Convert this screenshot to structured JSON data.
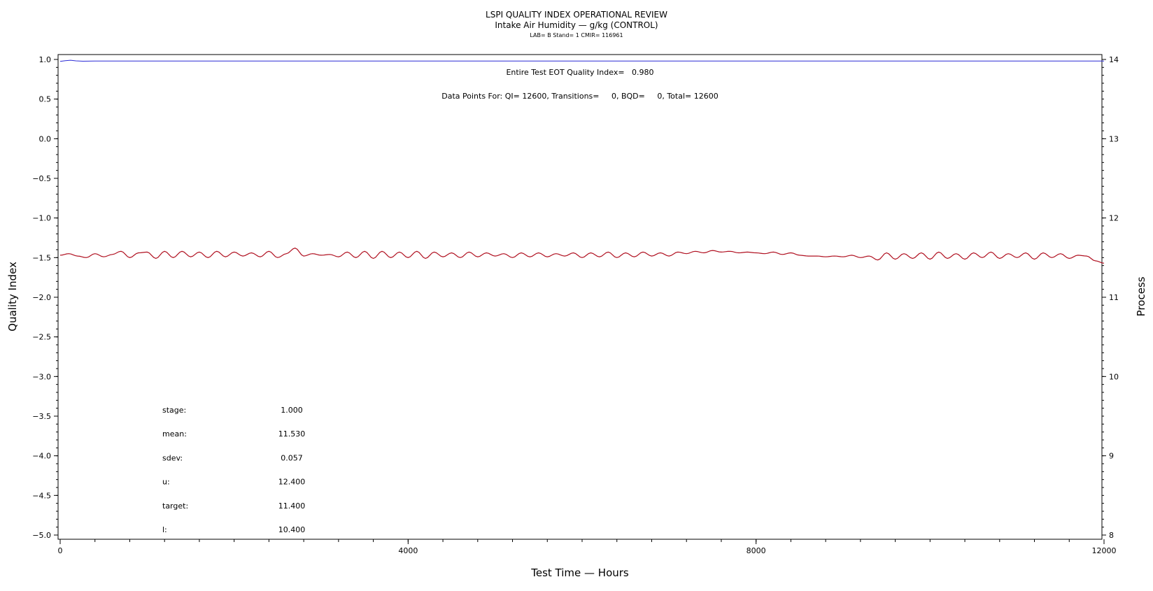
{
  "chart_data": {
    "type": "line",
    "title": "LSPI QUALITY INDEX OPERATIONAL REVIEW",
    "subtitle": "Intake Air Humidity — g/kg (CONTROL)",
    "subtitle2": "LAB= B Stand= 1 CMIR= 116961",
    "xlabel": "Test Time — Hours",
    "ylabel": "Quality Index",
    "y2label": "Process",
    "xlim": [
      0,
      12000
    ],
    "ylim": [
      -5.0,
      1.0
    ],
    "y2lim": [
      8,
      14
    ],
    "x_ticks": [
      "0",
      "4000",
      "8000",
      "12000"
    ],
    "y_ticks": [
      "1.0",
      "0.5",
      "0.0",
      "−0.5",
      "−1.0",
      "−1.5",
      "−2.0",
      "−2.5",
      "−3.0",
      "−3.5",
      "−4.0",
      "−4.5",
      "−5.0"
    ],
    "y2_ticks": [
      "14",
      "13",
      "12",
      "11",
      "10",
      "9",
      "8"
    ],
    "annotations": {
      "eot": "Entire Test EOT Quality Index=   0.980",
      "points": "Data Points For: QI= 12600, Transitions=     0, BQD=     0, Total= 12600"
    },
    "stats": [
      {
        "label": "stage:",
        "value": "1.000"
      },
      {
        "label": "mean:",
        "value": "11.530"
      },
      {
        "label": "sdev:",
        "value": "0.057"
      },
      {
        "label": "u:",
        "value": "12.400"
      },
      {
        "label": "target:",
        "value": "11.400"
      },
      {
        "label": "l:",
        "value": "10.400"
      }
    ],
    "series": [
      {
        "color": "#2b2bd6",
        "axis": "left",
        "x": [
          0,
          60,
          120,
          180,
          260,
          400,
          1000,
          4000,
          8000,
          12000
        ],
        "values": [
          0.975,
          0.985,
          0.99,
          0.982,
          0.978,
          0.98,
          0.98,
          0.98,
          0.98,
          0.98
        ]
      },
      {
        "color": "#b01020",
        "axis": "right",
        "x": [
          0,
          100,
          200,
          300,
          400,
          500,
          600,
          700,
          800,
          900,
          1000,
          1100,
          1200,
          1300,
          1400,
          1500,
          1600,
          1700,
          1800,
          1900,
          2000,
          2100,
          2200,
          2300,
          2400,
          2500,
          2600,
          2700,
          2800,
          2900,
          3000,
          3100,
          3200,
          3300,
          3400,
          3500,
          3600,
          3700,
          3800,
          3900,
          4000,
          4100,
          4200,
          4300,
          4400,
          4500,
          4600,
          4700,
          4800,
          4900,
          5000,
          5100,
          5200,
          5300,
          5400,
          5500,
          5600,
          5700,
          5800,
          5900,
          6000,
          6100,
          6200,
          6300,
          6400,
          6500,
          6600,
          6700,
          6800,
          6900,
          7000,
          7100,
          7200,
          7300,
          7400,
          7500,
          7600,
          7700,
          7800,
          7900,
          8000,
          8100,
          8200,
          8300,
          8400,
          8500,
          8600,
          8700,
          8800,
          8900,
          9000,
          9100,
          9200,
          9300,
          9400,
          9500,
          9600,
          9700,
          9800,
          9900,
          10000,
          10100,
          10200,
          10300,
          10400,
          10500,
          10600,
          10700,
          10800,
          10900,
          11000,
          11100,
          11200,
          11300,
          11400,
          11500,
          11600,
          11700,
          11800,
          11900,
          12000
        ],
        "values": [
          11.53,
          11.55,
          11.52,
          11.5,
          11.55,
          11.51,
          11.54,
          11.58,
          11.5,
          11.56,
          11.57,
          11.49,
          11.58,
          11.5,
          11.58,
          11.51,
          11.57,
          11.5,
          11.58,
          11.51,
          11.57,
          11.52,
          11.56,
          11.51,
          11.58,
          11.5,
          11.55,
          11.62,
          11.52,
          11.55,
          11.53,
          11.54,
          11.51,
          11.57,
          11.5,
          11.58,
          11.49,
          11.58,
          11.5,
          11.57,
          11.5,
          11.58,
          11.49,
          11.57,
          11.51,
          11.56,
          11.5,
          11.57,
          11.51,
          11.56,
          11.52,
          11.55,
          11.5,
          11.56,
          11.51,
          11.56,
          11.51,
          11.55,
          11.52,
          11.56,
          11.5,
          11.56,
          11.51,
          11.57,
          11.5,
          11.56,
          11.51,
          11.57,
          11.52,
          11.56,
          11.52,
          11.57,
          11.55,
          11.58,
          11.56,
          11.59,
          11.57,
          11.58,
          11.56,
          11.57,
          11.56,
          11.55,
          11.57,
          11.54,
          11.56,
          11.53,
          11.52,
          11.52,
          11.51,
          11.52,
          11.51,
          11.53,
          11.5,
          11.52,
          11.47,
          11.56,
          11.48,
          11.55,
          11.49,
          11.56,
          11.48,
          11.57,
          11.49,
          11.55,
          11.48,
          11.56,
          11.5,
          11.57,
          11.49,
          11.55,
          11.5,
          11.56,
          11.48,
          11.56,
          11.5,
          11.55,
          11.49,
          11.53,
          11.52,
          11.46,
          11.43
        ]
      }
    ]
  }
}
